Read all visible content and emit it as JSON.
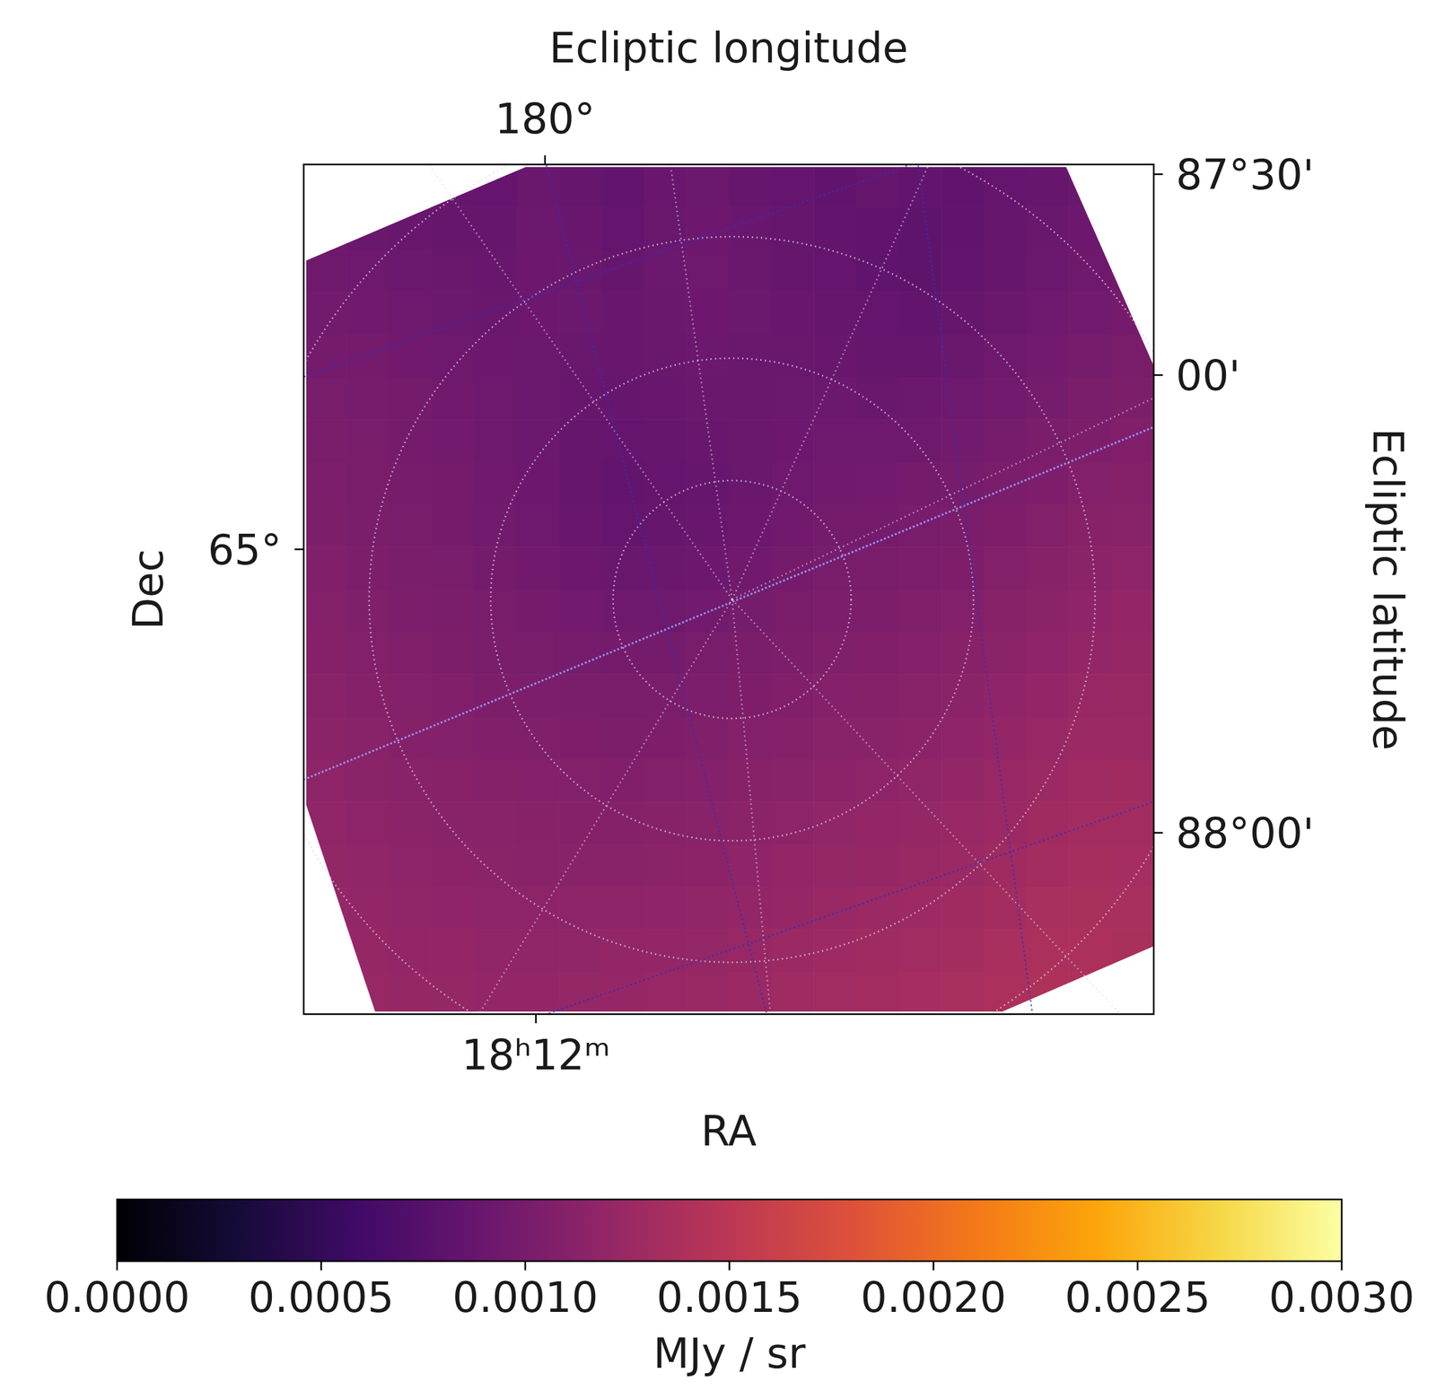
{
  "chart_data": {
    "type": "heatmap",
    "xlabel": "RA",
    "ylabel": "Dec",
    "x2label": "Ecliptic longitude",
    "y2label": "Ecliptic latitude",
    "ra_ticks": [
      {
        "value": 273,
        "label": "18ʰ12ᵐ"
      }
    ],
    "dec_ticks": [
      {
        "value": 65,
        "label": "65°"
      }
    ],
    "lon_ticks": [
      {
        "value": 180,
        "label": "180°"
      }
    ],
    "lat_ticks": [
      {
        "value": 87.5,
        "label": "87°30'"
      },
      {
        "value": 88,
        "label": "00'"
      },
      {
        "value": 88,
        "label": "88°00'"
      }
    ],
    "grid": true,
    "cells": [
      [
        null,
        null,
        null,
        0.00088,
        0.00086,
        0.0009,
        0.00087,
        0.00085,
        0.00089,
        0.00091,
        0.00088,
        0.00086,
        0.00084,
        0.00087,
        0.00085,
        0.00083,
        0.00086,
        0.00088,
        0.0009,
        null
      ],
      [
        0.00092,
        0.0009,
        0.00089,
        0.00087,
        0.00088,
        0.00091,
        0.00089,
        0.00086,
        0.0009,
        0.00092,
        0.00089,
        0.00087,
        0.00085,
        0.00084,
        0.00082,
        0.00084,
        0.00087,
        0.0009,
        0.00092,
        null
      ],
      [
        0.00094,
        0.00093,
        0.00091,
        0.0009,
        0.00089,
        0.00092,
        0.0009,
        0.00088,
        0.00091,
        0.00093,
        0.0009,
        0.00088,
        0.00086,
        0.00083,
        0.00082,
        0.00085,
        0.00088,
        0.00091,
        0.00094,
        0.00096
      ],
      [
        0.00096,
        0.00095,
        0.00093,
        0.00091,
        0.0009,
        0.00092,
        0.00091,
        0.00089,
        0.0009,
        0.00092,
        0.00091,
        0.00089,
        0.00088,
        0.00086,
        0.00085,
        0.00087,
        0.0009,
        0.00093,
        0.00096,
        0.00098
      ],
      [
        0.00098,
        0.00097,
        0.00095,
        0.00093,
        0.00092,
        0.00091,
        0.0009,
        0.00089,
        0.0009,
        0.00091,
        0.0009,
        0.0009,
        0.00089,
        0.00088,
        0.00088,
        0.0009,
        0.00093,
        0.00096,
        0.00099,
        0.00101
      ],
      [
        0.001,
        0.00099,
        0.00097,
        0.00095,
        0.00093,
        0.00091,
        0.00089,
        0.00088,
        0.00089,
        0.0009,
        0.0009,
        0.00091,
        0.00091,
        0.0009,
        0.00091,
        0.00093,
        0.00096,
        0.00099,
        0.00102,
        0.00104
      ],
      [
        0.00101,
        0.001,
        0.00098,
        0.00096,
        0.00094,
        0.00091,
        0.00088,
        0.00086,
        0.00087,
        0.00089,
        0.0009,
        0.00092,
        0.00093,
        0.00093,
        0.00094,
        0.00096,
        0.00099,
        0.00102,
        0.00105,
        0.00107
      ],
      [
        0.00103,
        0.00101,
        0.00099,
        0.00097,
        0.00095,
        0.00092,
        0.00088,
        0.00085,
        0.00086,
        0.00088,
        0.0009,
        0.00093,
        0.00095,
        0.00096,
        0.00097,
        0.00099,
        0.00102,
        0.00105,
        0.00108,
        0.0011
      ],
      [
        0.00104,
        0.00102,
        0.001,
        0.00098,
        0.00096,
        0.00093,
        0.00089,
        0.00086,
        0.00087,
        0.00089,
        0.00092,
        0.00095,
        0.00097,
        0.00098,
        0.001,
        0.00102,
        0.00105,
        0.00108,
        0.00111,
        0.00113
      ],
      [
        0.00106,
        0.00104,
        0.00102,
        0.001,
        0.00098,
        0.00095,
        0.00092,
        0.0009,
        0.0009,
        0.00092,
        0.00095,
        0.00098,
        0.001,
        0.00101,
        0.00103,
        0.00105,
        0.00108,
        0.00111,
        0.00114,
        0.00116
      ],
      [
        0.00108,
        0.00106,
        0.00104,
        0.00102,
        0.001,
        0.00098,
        0.00096,
        0.00094,
        0.00094,
        0.00096,
        0.00099,
        0.00101,
        0.00103,
        0.00104,
        0.00106,
        0.00108,
        0.00111,
        0.00114,
        0.00117,
        0.00119
      ],
      [
        0.0011,
        0.00108,
        0.00106,
        0.00104,
        0.00102,
        0.001,
        0.00099,
        0.00098,
        0.00098,
        0.001,
        0.00102,
        0.00104,
        0.00106,
        0.00107,
        0.00109,
        0.00111,
        0.00114,
        0.00117,
        0.0012,
        0.00122
      ],
      [
        0.00112,
        0.0011,
        0.00108,
        0.00106,
        0.00104,
        0.00103,
        0.00102,
        0.00101,
        0.00102,
        0.00103,
        0.00105,
        0.00107,
        0.00109,
        0.0011,
        0.00112,
        0.00114,
        0.00117,
        0.0012,
        0.00123,
        0.00124
      ],
      [
        0.00114,
        0.00112,
        0.0011,
        0.00108,
        0.00107,
        0.00106,
        0.00105,
        0.00104,
        0.00105,
        0.00106,
        0.00108,
        0.0011,
        0.00112,
        0.00113,
        0.00115,
        0.00117,
        0.0012,
        0.00123,
        0.00125,
        0.00126
      ],
      [
        0.00116,
        0.00114,
        0.00112,
        0.00111,
        0.0011,
        0.00109,
        0.00108,
        0.00107,
        0.00108,
        0.00109,
        0.00111,
        0.00113,
        0.00115,
        0.00116,
        0.00118,
        0.0012,
        0.00123,
        0.00126,
        0.00128,
        0.00129
      ],
      [
        0.00118,
        0.00116,
        0.00114,
        0.00113,
        0.00112,
        0.00111,
        0.0011,
        0.0011,
        0.00111,
        0.00112,
        0.00114,
        0.00116,
        0.00118,
        0.00119,
        0.00121,
        0.00123,
        0.00126,
        0.00129,
        0.00131,
        0.00131
      ],
      [
        0.0012,
        0.00118,
        0.00116,
        0.00115,
        0.00114,
        0.00113,
        0.00113,
        0.00113,
        0.00114,
        0.00115,
        0.00117,
        0.00119,
        0.00121,
        0.00122,
        0.00124,
        0.00126,
        0.00129,
        0.00132,
        0.00134,
        0.00133
      ],
      [
        0.00122,
        0.0012,
        0.00118,
        0.00117,
        0.00116,
        0.00116,
        0.00116,
        0.00116,
        0.00117,
        0.00118,
        0.0012,
        0.00122,
        0.00124,
        0.00125,
        0.00127,
        0.00129,
        0.00132,
        0.00135,
        0.00136,
        0.00135
      ],
      [
        null,
        0.00122,
        0.0012,
        0.00119,
        0.00118,
        0.00118,
        0.00118,
        0.00119,
        0.0012,
        0.00121,
        0.00123,
        0.00125,
        0.00127,
        0.00128,
        0.0013,
        0.00132,
        0.00135,
        0.00138,
        0.00138,
        0.00137
      ],
      [
        null,
        0.00123,
        0.00122,
        0.00121,
        0.0012,
        0.0012,
        0.00121,
        0.00122,
        0.00123,
        0.00124,
        0.00126,
        0.00128,
        0.0013,
        0.00131,
        0.00133,
        0.00135,
        0.00138,
        0.0014,
        0.00139,
        null
      ]
    ],
    "colorbar_label": "MJy / sr",
    "colorbar_range": [
      0,
      0.003
    ],
    "colorbar_ticks": [
      {
        "value": 0,
        "label": "0.0000"
      },
      {
        "value": 0.0005,
        "label": "0.0005"
      },
      {
        "value": 0.001,
        "label": "0.0010"
      },
      {
        "value": 0.0015,
        "label": "0.0015"
      },
      {
        "value": 0.002,
        "label": "0.0020"
      },
      {
        "value": 0.0025,
        "label": "0.0025"
      },
      {
        "value": 0.003,
        "label": "0.0030"
      }
    ]
  }
}
